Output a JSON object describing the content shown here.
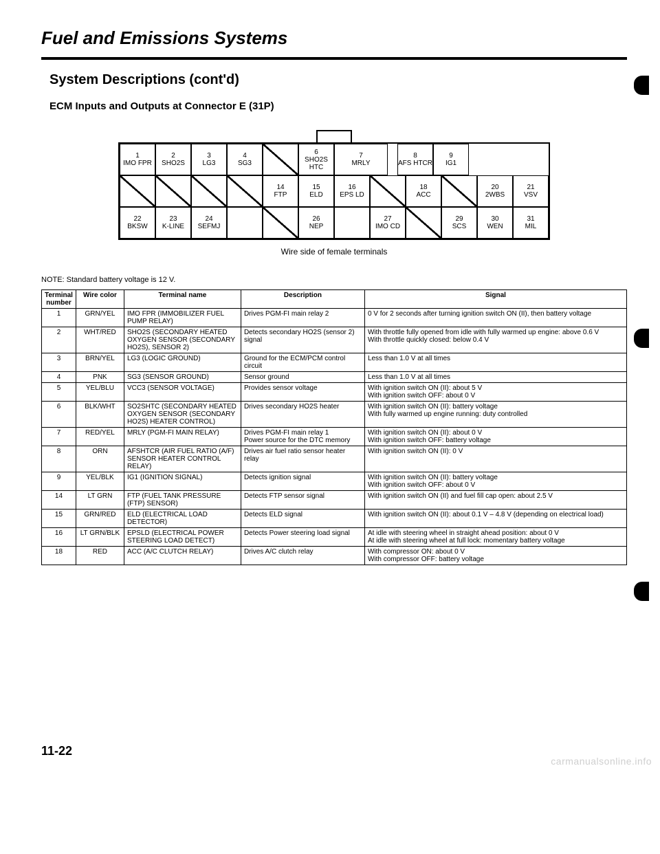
{
  "page": {
    "title": "Fuel and Emissions Systems",
    "subtitle": "System Descriptions (cont'd)",
    "subsub": "ECM Inputs and Outputs at Connector E (31P)",
    "connector_caption": "Wire side of female terminals",
    "note": "NOTE: Standard battery voltage is 12 V.",
    "page_number": "11-22",
    "watermark": "carmanualsonline.info"
  },
  "connector": {
    "rows": [
      [
        {
          "n": "1",
          "l": "IMO FPR"
        },
        {
          "n": "2",
          "l": "SHO2S"
        },
        {
          "n": "3",
          "l": "LG3"
        },
        {
          "n": "4",
          "l": "SG3"
        },
        {
          "slash": true
        },
        {
          "n": "6",
          "l": "SHO2S HTC"
        },
        {
          "n": "7",
          "l": "MRLY",
          "wide": true
        },
        {
          "gap": true
        },
        {
          "n": "8",
          "l": "AFS HTCR"
        },
        {
          "n": "9",
          "l": "IG1"
        }
      ],
      [
        {
          "slash": true
        },
        {
          "slash": true
        },
        {
          "slash": true
        },
        {
          "slash": true
        },
        {
          "n": "14",
          "l": "FTP"
        },
        {
          "n": "15",
          "l": "ELD"
        },
        {
          "n": "16",
          "l": "EPS LD"
        },
        {
          "slash": true
        },
        {
          "n": "18",
          "l": "ACC"
        },
        {
          "slash": true
        },
        {
          "n": "20",
          "l": "2WBS"
        },
        {
          "n": "21",
          "l": "VSV"
        }
      ],
      [
        {
          "n": "22",
          "l": "BKSW"
        },
        {
          "n": "23",
          "l": "K-LINE"
        },
        {
          "n": "24",
          "l": "SEFMJ"
        },
        {
          "blank": true
        },
        {
          "slash": true
        },
        {
          "n": "26",
          "l": "NEP"
        },
        {
          "blank": true
        },
        {
          "n": "27",
          "l": "IMO CD"
        },
        {
          "slash": true
        },
        {
          "n": "29",
          "l": "SCS"
        },
        {
          "n": "30",
          "l": "WEN"
        },
        {
          "n": "31",
          "l": "MIL"
        }
      ]
    ]
  },
  "table": {
    "headers": [
      "Terminal number",
      "Wire color",
      "Terminal name",
      "Description",
      "Signal"
    ],
    "rows": [
      {
        "num": "1",
        "wire": "GRN/YEL",
        "name": "IMO FPR (IMMOBILIZER FUEL PUMP RELAY)",
        "desc": "Drives PGM-FI main relay 2",
        "signal": "0 V for 2 seconds after turning ignition switch ON (II), then battery voltage"
      },
      {
        "num": "2",
        "wire": "WHT/RED",
        "name": "SHO2S (SECONDARY HEATED OXYGEN SENSOR (SECONDARY HO2S), SENSOR 2)",
        "desc": "Detects secondary HO2S (sensor 2) signal",
        "signal": "With throttle fully opened from idle with fully warmed up engine: above 0.6 V\nWith throttle quickly closed: below 0.4 V"
      },
      {
        "num": "3",
        "wire": "BRN/YEL",
        "name": "LG3 (LOGIC GROUND)",
        "desc": "Ground for the ECM/PCM control circuit",
        "signal": "Less than 1.0 V at all times"
      },
      {
        "num": "4",
        "wire": "PNK",
        "name": "SG3 (SENSOR GROUND)",
        "desc": "Sensor ground",
        "signal": "Less than 1.0 V at all times"
      },
      {
        "num": "5",
        "wire": "YEL/BLU",
        "name": "VCC3 (SENSOR VOLTAGE)",
        "desc": "Provides sensor voltage",
        "signal": "With ignition switch ON (II): about 5 V\nWith ignition switch OFF: about 0 V"
      },
      {
        "num": "6",
        "wire": "BLK/WHT",
        "name": "SO2SHTC (SECONDARY HEATED OXYGEN SENSOR (SECONDARY HO2S) HEATER CONTROL)",
        "desc": "Drives secondary HO2S heater",
        "signal": "With ignition switch ON (II): battery voltage\nWith fully warmed up engine running: duty controlled"
      },
      {
        "num": "7",
        "wire": "RED/YEL",
        "name": "MRLY (PGM-FI MAIN RELAY)",
        "desc": "Drives PGM-FI main relay 1\nPower source for the DTC memory",
        "signal": "With ignition switch ON (II): about 0 V\nWith ignition switch OFF: battery voltage"
      },
      {
        "num": "8",
        "wire": "ORN",
        "name": "AFSHTCR (AIR FUEL RATIO (A/F) SENSOR HEATER CONTROL RELAY)",
        "desc": "Drives air fuel ratio sensor heater relay",
        "signal": "With ignition switch ON (II): 0 V"
      },
      {
        "num": "9",
        "wire": "YEL/BLK",
        "name": "IG1 (IGNITION SIGNAL)",
        "desc": "Detects ignition signal",
        "signal": "With ignition switch ON (II): battery voltage\nWith ignition switch OFF: about 0 V"
      },
      {
        "num": "14",
        "wire": "LT GRN",
        "name": "FTP (FUEL TANK PRESSURE (FTP) SENSOR)",
        "desc": "Detects FTP sensor signal",
        "signal": "With ignition switch ON (II) and fuel fill cap open: about 2.5 V"
      },
      {
        "num": "15",
        "wire": "GRN/RED",
        "name": "ELD (ELECTRICAL LOAD DETECTOR)",
        "desc": "Detects ELD signal",
        "signal": "With ignition switch ON (II): about 0.1 V – 4.8 V (depending on electrical load)"
      },
      {
        "num": "16",
        "wire": "LT GRN/BLK",
        "name": "EPSLD (ELECTRICAL POWER STEERING LOAD DETECT)",
        "desc": "Detects Power steering load signal",
        "signal": "At idle with steering wheel in straight ahead position: about 0 V\nAt idle with steering wheel at full lock: momentary battery voltage"
      },
      {
        "num": "18",
        "wire": "RED",
        "name": "ACC (A/C CLUTCH RELAY)",
        "desc": "Drives A/C clutch relay",
        "signal": "With compressor ON: about 0 V\nWith compressor OFF: battery voltage"
      }
    ]
  }
}
